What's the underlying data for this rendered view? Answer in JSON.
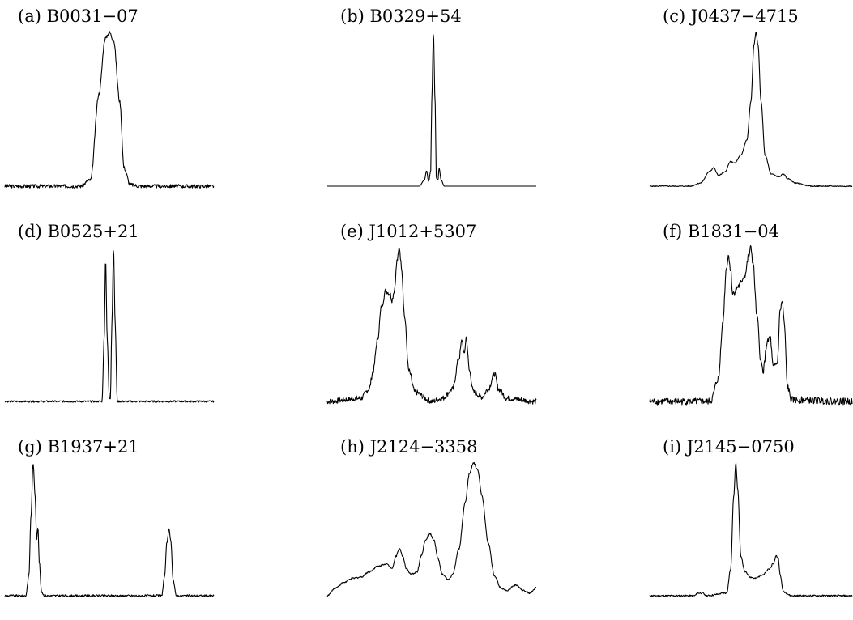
{
  "chart_data": [
    {
      "type": "line",
      "title": "(a) B0031−07",
      "series": [
        {
          "values": [
            [
              0,
              0
            ],
            [
              0.36,
              0
            ],
            [
              0.41,
              0.04
            ],
            [
              0.45,
              0.6
            ],
            [
              0.48,
              0.96
            ],
            [
              0.5,
              1
            ],
            [
              0.52,
              0.95
            ],
            [
              0.55,
              0.55
            ],
            [
              0.57,
              0.12
            ],
            [
              0.6,
              0.01
            ],
            [
              0.65,
              0
            ],
            [
              1,
              0
            ]
          ]
        }
      ],
      "noise": 0.012,
      "xlim": [
        0,
        1
      ],
      "ylim": [
        0,
        1
      ]
    },
    {
      "type": "line",
      "title": "(b) B0329+54",
      "series": [
        {
          "values": [
            [
              0,
              0
            ],
            [
              0.44,
              0
            ],
            [
              0.465,
              0.04
            ],
            [
              0.475,
              0.1
            ],
            [
              0.485,
              0.03
            ],
            [
              0.495,
              0.1
            ],
            [
              0.5,
              0.55
            ],
            [
              0.508,
              1
            ],
            [
              0.516,
              0.55
            ],
            [
              0.522,
              0.05
            ],
            [
              0.53,
              0.04
            ],
            [
              0.535,
              0.12
            ],
            [
              0.545,
              0.04
            ],
            [
              0.56,
              0
            ],
            [
              1,
              0
            ]
          ]
        }
      ],
      "noise": 0,
      "xlim": [
        0,
        1
      ],
      "ylim": [
        0,
        1
      ]
    },
    {
      "type": "line",
      "title": "(c) J0437−4715",
      "series": [
        {
          "values": [
            [
              0,
              0
            ],
            [
              0.2,
              0
            ],
            [
              0.25,
              0.02
            ],
            [
              0.3,
              0.1
            ],
            [
              0.315,
              0.12
            ],
            [
              0.34,
              0.07
            ],
            [
              0.37,
              0.09
            ],
            [
              0.4,
              0.16
            ],
            [
              0.42,
              0.15
            ],
            [
              0.45,
              0.2
            ],
            [
              0.48,
              0.3
            ],
            [
              0.5,
              0.55
            ],
            [
              0.515,
              0.92
            ],
            [
              0.525,
              1
            ],
            [
              0.535,
              0.92
            ],
            [
              0.55,
              0.55
            ],
            [
              0.57,
              0.2
            ],
            [
              0.6,
              0.08
            ],
            [
              0.64,
              0.06
            ],
            [
              0.66,
              0.08
            ],
            [
              0.68,
              0.05
            ],
            [
              0.72,
              0.02
            ],
            [
              0.8,
              0
            ],
            [
              1,
              0
            ]
          ]
        }
      ],
      "noise": 0.003,
      "xlim": [
        0,
        1
      ],
      "ylim": [
        0,
        1
      ]
    },
    {
      "type": "line",
      "title": "(d) B0525+21",
      "series": [
        {
          "values": [
            [
              0,
              0
            ],
            [
              0.465,
              0
            ],
            [
              0.475,
              0.4
            ],
            [
              0.482,
              0.93
            ],
            [
              0.49,
              0.4
            ],
            [
              0.5,
              0.02
            ],
            [
              0.505,
              0.02
            ],
            [
              0.512,
              0.5
            ],
            [
              0.52,
              1
            ],
            [
              0.528,
              0.5
            ],
            [
              0.538,
              0
            ],
            [
              1,
              0
            ]
          ]
        }
      ],
      "noise": 0.006,
      "xlim": [
        0,
        1
      ],
      "ylim": [
        0,
        1
      ]
    },
    {
      "type": "line",
      "title": "(e) J1012+5307",
      "series": [
        {
          "values": [
            [
              0,
              0
            ],
            [
              0.16,
              0.02
            ],
            [
              0.2,
              0.08
            ],
            [
              0.22,
              0.2
            ],
            [
              0.24,
              0.4
            ],
            [
              0.26,
              0.62
            ],
            [
              0.28,
              0.72
            ],
            [
              0.3,
              0.7
            ],
            [
              0.31,
              0.66
            ],
            [
              0.32,
              0.72
            ],
            [
              0.335,
              0.92
            ],
            [
              0.345,
              1
            ],
            [
              0.355,
              0.88
            ],
            [
              0.37,
              0.55
            ],
            [
              0.39,
              0.2
            ],
            [
              0.42,
              0.06
            ],
            [
              0.5,
              0
            ],
            [
              0.55,
              0.02
            ],
            [
              0.6,
              0.08
            ],
            [
              0.63,
              0.28
            ],
            [
              0.645,
              0.4
            ],
            [
              0.655,
              0.3
            ],
            [
              0.665,
              0.42
            ],
            [
              0.68,
              0.2
            ],
            [
              0.7,
              0.06
            ],
            [
              0.74,
              0.03
            ],
            [
              0.77,
              0.08
            ],
            [
              0.8,
              0.18
            ],
            [
              0.82,
              0.08
            ],
            [
              0.86,
              0.02
            ],
            [
              1,
              0
            ]
          ]
        }
      ],
      "noise": 0.018,
      "xlim": [
        0,
        1
      ],
      "ylim": [
        0,
        1
      ]
    },
    {
      "type": "line",
      "title": "(f) B1831−04",
      "series": [
        {
          "values": [
            [
              0,
              0
            ],
            [
              0.3,
              0
            ],
            [
              0.34,
              0.15
            ],
            [
              0.36,
              0.5
            ],
            [
              0.38,
              0.88
            ],
            [
              0.39,
              0.95
            ],
            [
              0.4,
              0.85
            ],
            [
              0.41,
              0.7
            ],
            [
              0.44,
              0.75
            ],
            [
              0.47,
              0.82
            ],
            [
              0.49,
              0.95
            ],
            [
              0.5,
              1
            ],
            [
              0.51,
              0.9
            ],
            [
              0.53,
              0.55
            ],
            [
              0.55,
              0.25
            ],
            [
              0.56,
              0.2
            ],
            [
              0.58,
              0.38
            ],
            [
              0.595,
              0.42
            ],
            [
              0.61,
              0.22
            ],
            [
              0.63,
              0.25
            ],
            [
              0.645,
              0.6
            ],
            [
              0.655,
              0.65
            ],
            [
              0.665,
              0.5
            ],
            [
              0.68,
              0.1
            ],
            [
              0.7,
              0.01
            ],
            [
              1,
              0
            ]
          ]
        }
      ],
      "noise": 0.022,
      "xlim": [
        0,
        1
      ],
      "ylim": [
        0,
        1
      ]
    },
    {
      "type": "line",
      "title": "(g) B1937+21",
      "series": [
        {
          "values": [
            [
              0,
              0
            ],
            [
              0.1,
              0
            ],
            [
              0.115,
              0.15
            ],
            [
              0.125,
              0.6
            ],
            [
              0.135,
              1
            ],
            [
              0.145,
              0.75
            ],
            [
              0.152,
              0.43
            ],
            [
              0.158,
              0.52
            ],
            [
              0.165,
              0.25
            ],
            [
              0.175,
              0.03
            ],
            [
              0.19,
              0
            ],
            [
              0.75,
              0
            ],
            [
              0.765,
              0.15
            ],
            [
              0.775,
              0.4
            ],
            [
              0.785,
              0.5
            ],
            [
              0.795,
              0.4
            ],
            [
              0.805,
              0.12
            ],
            [
              0.82,
              0
            ],
            [
              1,
              0
            ]
          ]
        }
      ],
      "noise": 0.008,
      "xlim": [
        0,
        1
      ],
      "ylim": [
        0,
        1
      ]
    },
    {
      "type": "line",
      "title": "(h) J2124−3358",
      "series": [
        {
          "values": [
            [
              0,
              0
            ],
            [
              0.04,
              0.06
            ],
            [
              0.08,
              0.1
            ],
            [
              0.12,
              0.13
            ],
            [
              0.16,
              0.14
            ],
            [
              0.2,
              0.18
            ],
            [
              0.24,
              0.22
            ],
            [
              0.28,
              0.24
            ],
            [
              0.31,
              0.21
            ],
            [
              0.33,
              0.3
            ],
            [
              0.345,
              0.36
            ],
            [
              0.36,
              0.3
            ],
            [
              0.38,
              0.2
            ],
            [
              0.4,
              0.16
            ],
            [
              0.43,
              0.18
            ],
            [
              0.45,
              0.3
            ],
            [
              0.47,
              0.42
            ],
            [
              0.49,
              0.47
            ],
            [
              0.51,
              0.42
            ],
            [
              0.53,
              0.28
            ],
            [
              0.55,
              0.16
            ],
            [
              0.58,
              0.12
            ],
            [
              0.6,
              0.16
            ],
            [
              0.63,
              0.35
            ],
            [
              0.66,
              0.7
            ],
            [
              0.68,
              0.92
            ],
            [
              0.7,
              1
            ],
            [
              0.72,
              0.95
            ],
            [
              0.74,
              0.75
            ],
            [
              0.77,
              0.4
            ],
            [
              0.8,
              0.15
            ],
            [
              0.83,
              0.06
            ],
            [
              0.86,
              0.04
            ],
            [
              0.9,
              0.08
            ],
            [
              0.94,
              0.04
            ],
            [
              0.97,
              0.02
            ],
            [
              1,
              0.06
            ]
          ]
        }
      ],
      "noise": 0.006,
      "xlim": [
        0,
        1
      ],
      "ylim": [
        0,
        1
      ]
    },
    {
      "type": "line",
      "title": "(i) J2145−0750",
      "series": [
        {
          "values": [
            [
              0,
              0
            ],
            [
              0.22,
              0
            ],
            [
              0.24,
              0.02
            ],
            [
              0.26,
              0.02
            ],
            [
              0.28,
              0
            ],
            [
              0.38,
              0.02
            ],
            [
              0.4,
              0.2
            ],
            [
              0.415,
              0.75
            ],
            [
              0.425,
              1
            ],
            [
              0.435,
              0.8
            ],
            [
              0.45,
              0.3
            ],
            [
              0.47,
              0.18
            ],
            [
              0.5,
              0.14
            ],
            [
              0.52,
              0.13
            ],
            [
              0.56,
              0.16
            ],
            [
              0.59,
              0.2
            ],
            [
              0.61,
              0.24
            ],
            [
              0.625,
              0.3
            ],
            [
              0.635,
              0.28
            ],
            [
              0.645,
              0.15
            ],
            [
              0.66,
              0.03
            ],
            [
              0.7,
              0
            ],
            [
              1,
              0
            ]
          ]
        }
      ],
      "noise": 0.006,
      "xlim": [
        0,
        1
      ],
      "ylim": [
        0,
        1
      ]
    }
  ]
}
